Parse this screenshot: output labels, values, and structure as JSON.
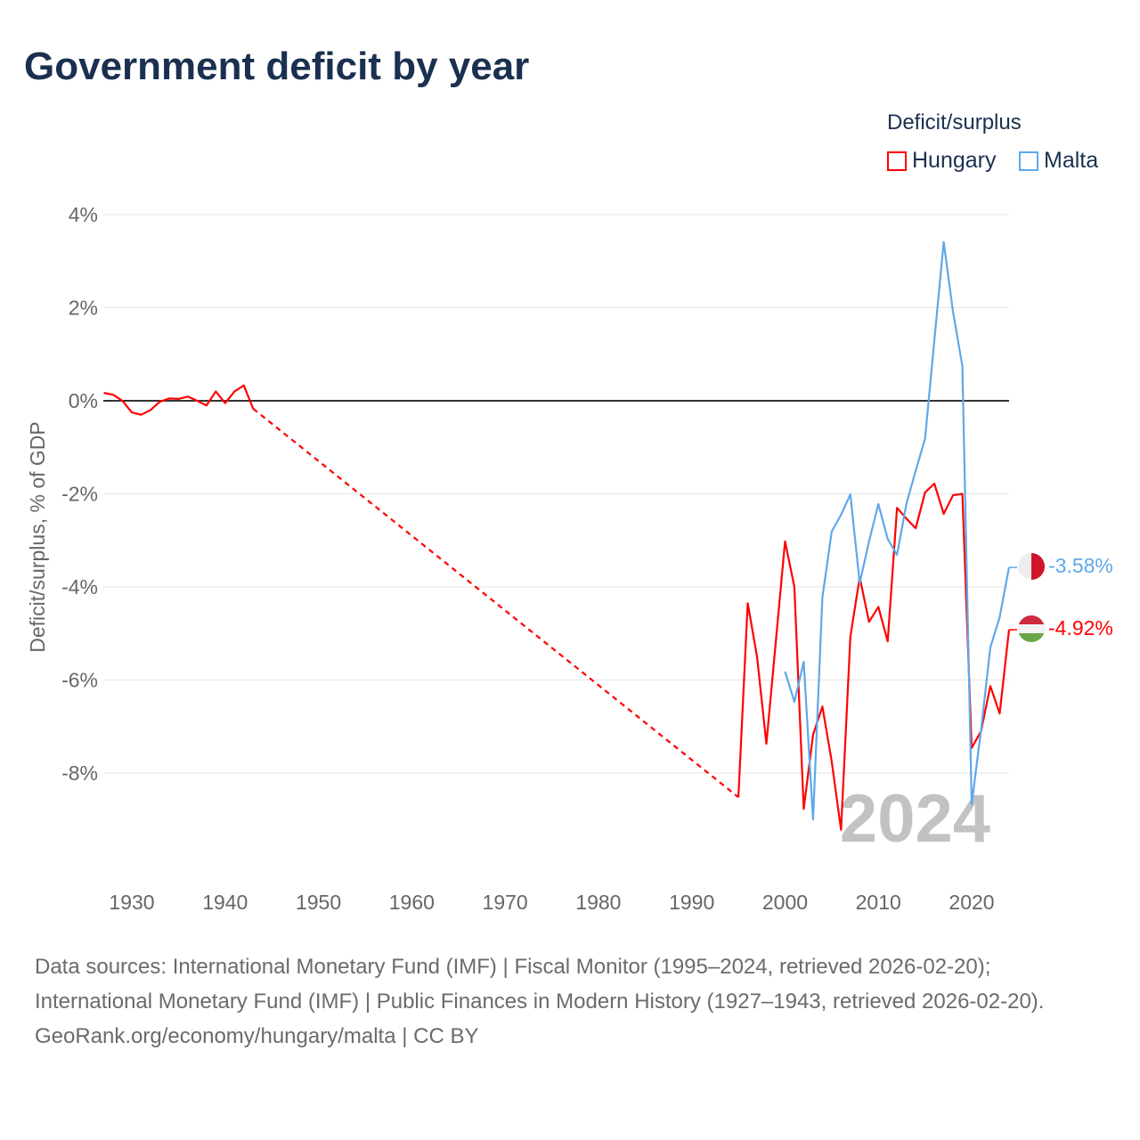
{
  "chart_data": {
    "type": "line",
    "title": "Government deficit by year",
    "ylabel": "Deficit/surplus, % of GDP",
    "xlabel": "",
    "xlim": [
      1927,
      2024
    ],
    "ylim": [
      -10,
      4
    ],
    "x_ticks": [
      "1930",
      "1940",
      "1950",
      "1960",
      "1970",
      "1980",
      "1990",
      "2000",
      "2010",
      "2020"
    ],
    "y_ticks": [
      {
        "v": 4,
        "label": "4%"
      },
      {
        "v": 2,
        "label": "2%"
      },
      {
        "v": 0,
        "label": "0%"
      },
      {
        "v": -2,
        "label": "-2%"
      },
      {
        "v": -4,
        "label": "-4%"
      },
      {
        "v": -6,
        "label": "-6%"
      },
      {
        "v": -8,
        "label": "-8%"
      }
    ],
    "legend_title": "Deficit/surplus",
    "legend_position": "top-right",
    "year_label": "2024",
    "series": [
      {
        "name": "Hungary",
        "color": "#ff0000",
        "end_label": "-4.92%",
        "gap": [
          1943,
          1995
        ],
        "x": [
          1927,
          1928,
          1929,
          1930,
          1931,
          1932,
          1933,
          1934,
          1935,
          1936,
          1937,
          1938,
          1939,
          1940,
          1941,
          1942,
          1943,
          1995,
          1996,
          1997,
          1998,
          1999,
          2000,
          2001,
          2002,
          2003,
          2004,
          2005,
          2006,
          2007,
          2008,
          2009,
          2010,
          2011,
          2012,
          2013,
          2014,
          2015,
          2016,
          2017,
          2018,
          2019,
          2020,
          2021,
          2022,
          2023,
          2024
        ],
        "y": [
          0.17,
          0.13,
          0.0,
          -0.25,
          -0.3,
          -0.2,
          -0.02,
          0.05,
          0.04,
          0.09,
          0.0,
          -0.1,
          0.2,
          -0.05,
          0.2,
          0.33,
          -0.17,
          -8.52,
          -4.35,
          -5.5,
          -7.37,
          -5.2,
          -3.02,
          -4.0,
          -8.77,
          -7.18,
          -6.57,
          -7.75,
          -9.22,
          -5.07,
          -3.79,
          -4.75,
          -4.43,
          -5.17,
          -2.3,
          -2.53,
          -2.74,
          -1.97,
          -1.78,
          -2.43,
          -2.03,
          -2.0,
          -7.46,
          -7.1,
          -6.13,
          -6.72,
          -4.92
        ]
      },
      {
        "name": "Malta",
        "color": "#5fa8ea",
        "end_label": "-3.58%",
        "x": [
          2000,
          2001,
          2002,
          2003,
          2004,
          2005,
          2006,
          2007,
          2008,
          2009,
          2010,
          2011,
          2012,
          2013,
          2014,
          2015,
          2016,
          2017,
          2018,
          2019,
          2020,
          2021,
          2022,
          2023,
          2024
        ],
        "y": [
          -5.82,
          -6.47,
          -5.61,
          -9.0,
          -4.23,
          -2.81,
          -2.45,
          -2.01,
          -3.92,
          -3.02,
          -2.22,
          -2.97,
          -3.31,
          -2.22,
          -1.5,
          -0.82,
          1.3,
          3.41,
          1.91,
          0.75,
          -8.67,
          -7.08,
          -5.3,
          -4.65,
          -3.58
        ]
      }
    ]
  },
  "footer": {
    "sources": "Data sources: International Monetary Fund (IMF) | Fiscal Monitor (1995–2024, retrieved 2026-02-20); International Monetary Fund (IMF) | Public Finances in Modern History (1927–1943, retrieved 2026-02-20).",
    "credit": "GeoRank.org/economy/hungary/malta | CC BY"
  }
}
